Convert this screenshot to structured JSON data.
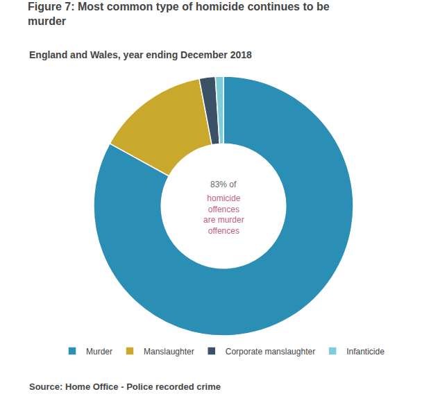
{
  "chart_data": {
    "type": "donut",
    "title": "Figure 7: Most common type of homicide continues to be\nmurder",
    "subtitle": "England and Wales, year ending December 2018",
    "source": "Source: Home Office - Police recorded crime",
    "categories": [
      "Murder",
      "Manslaughter",
      "Corporate manslaughter",
      "Infanticide"
    ],
    "values": [
      83,
      14,
      2,
      1
    ],
    "colors": [
      "#2b8eb5",
      "#c9a82c",
      "#3d5166",
      "#7ecbda"
    ],
    "annotations": [
      {
        "text": "83% of",
        "color": "#666666"
      },
      {
        "text": "homicide\noffences\nare murder\noffences",
        "color": "#c06080"
      }
    ],
    "legend": "bottom"
  }
}
